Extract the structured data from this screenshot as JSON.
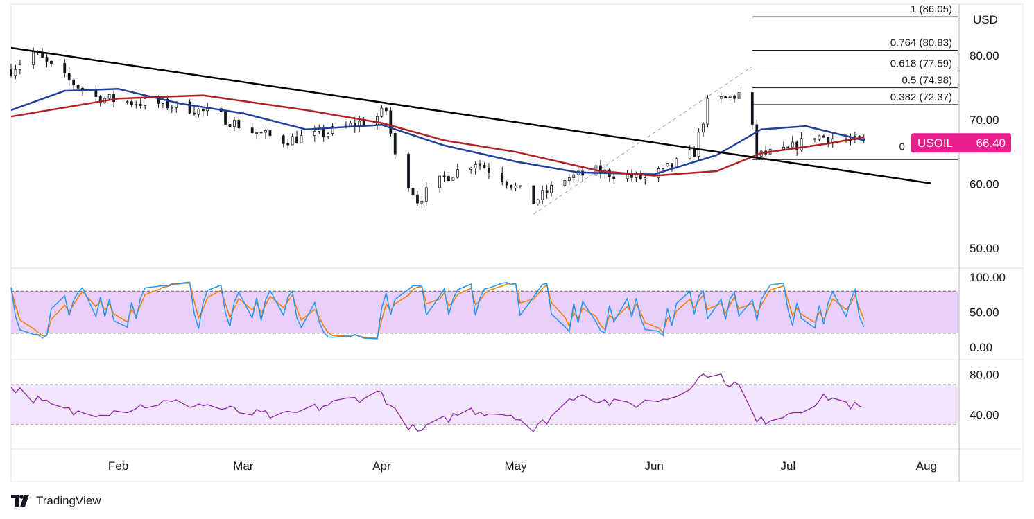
{
  "chart_data": {
    "type": "candlestick",
    "symbol": "USOIL",
    "last_price": "66.40",
    "currency": "USD",
    "price_axis": {
      "ylim": [
        47,
        88
      ],
      "ticks": [
        "80.00",
        "70.00",
        "60.00",
        "50.00"
      ],
      "tick_values": [
        80,
        70,
        60,
        50
      ]
    },
    "x_axis": {
      "months": [
        "Feb",
        "Mar",
        "Apr",
        "May",
        "Jun",
        "Jul",
        "Aug"
      ],
      "start": "2025-01-08",
      "end": "2025-08-08"
    },
    "price_path": [
      [
        "2025-01-08",
        77.8
      ],
      [
        "2025-01-13",
        80.5
      ],
      [
        "2025-01-20",
        76.5
      ],
      [
        "2025-01-27",
        73.5
      ],
      [
        "2025-02-03",
        72.8
      ],
      [
        "2025-02-10",
        72.5
      ],
      [
        "2025-02-17",
        71.8
      ],
      [
        "2025-02-24",
        70.5
      ],
      [
        "2025-03-03",
        68.2
      ],
      [
        "2025-03-10",
        66.8
      ],
      [
        "2025-03-17",
        67.5
      ],
      [
        "2025-03-24",
        68.8
      ],
      [
        "2025-03-31",
        70.5
      ],
      [
        "2025-04-02",
        71.5
      ],
      [
        "2025-04-04",
        64.2
      ],
      [
        "2025-04-09",
        57.5
      ],
      [
        "2025-04-15",
        61.0
      ],
      [
        "2025-04-22",
        63.5
      ],
      [
        "2025-04-29",
        60.5
      ],
      [
        "2025-05-05",
        57.2
      ],
      [
        "2025-05-12",
        60.8
      ],
      [
        "2025-05-19",
        62.0
      ],
      [
        "2025-05-26",
        61.2
      ],
      [
        "2025-05-30",
        60.8
      ],
      [
        "2025-06-05",
        62.8
      ],
      [
        "2025-06-10",
        65.0
      ],
      [
        "2025-06-13",
        72.5
      ],
      [
        "2025-06-18",
        73.5
      ],
      [
        "2025-06-20",
        74.0
      ],
      [
        "2025-06-23",
        68.5
      ],
      [
        "2025-06-24",
        64.5
      ],
      [
        "2025-06-30",
        65.0
      ],
      [
        "2025-07-07",
        67.5
      ],
      [
        "2025-07-14",
        66.8
      ],
      [
        "2025-07-18",
        66.4
      ]
    ],
    "moving_averages": [
      {
        "color": "#1e3f9b",
        "values": [
          [
            "2025-01-08",
            71.5
          ],
          [
            "2025-01-20",
            74.5
          ],
          [
            "2025-02-01",
            74.8
          ],
          [
            "2025-02-15",
            72.5
          ],
          [
            "2025-03-01",
            71.0
          ],
          [
            "2025-03-15",
            68.5
          ],
          [
            "2025-04-01",
            69.2
          ],
          [
            "2025-04-15",
            66.0
          ],
          [
            "2025-05-01",
            63.5
          ],
          [
            "2025-05-15",
            61.8
          ],
          [
            "2025-06-01",
            61.5
          ],
          [
            "2025-06-15",
            64.5
          ],
          [
            "2025-06-25",
            68.5
          ],
          [
            "2025-07-05",
            69.0
          ],
          [
            "2025-07-18",
            66.8
          ]
        ]
      },
      {
        "color": "#b22222",
        "values": [
          [
            "2025-01-08",
            70.5
          ],
          [
            "2025-02-01",
            73.3
          ],
          [
            "2025-02-20",
            73.8
          ],
          [
            "2025-03-15",
            71.5
          ],
          [
            "2025-04-01",
            69.5
          ],
          [
            "2025-04-15",
            66.8
          ],
          [
            "2025-05-01",
            65.0
          ],
          [
            "2025-05-20",
            62.0
          ],
          [
            "2025-06-01",
            61.3
          ],
          [
            "2025-06-15",
            62.0
          ],
          [
            "2025-06-25",
            64.8
          ],
          [
            "2025-07-10",
            66.3
          ],
          [
            "2025-07-18",
            67.3
          ]
        ]
      }
    ],
    "trendline": {
      "color": "#000000",
      "from": [
        "2025-01-08",
        81.2
      ],
      "to": [
        "2025-08-02",
        60.1
      ]
    },
    "fib_anchor": {
      "from": [
        "2025-05-05",
        55.3
      ],
      "to": [
        "2025-06-23",
        78.3
      ]
    },
    "fibonacci": [
      {
        "label": "1 (86.05)",
        "price": 86.05
      },
      {
        "label": "0.764 (80.83)",
        "price": 80.83
      },
      {
        "label": "0.618 (77.59)",
        "price": 77.59
      },
      {
        "label": "0.5 (74.98)",
        "price": 74.98
      },
      {
        "label": "0.382 (72.37)",
        "price": 72.37
      },
      {
        "label": "0",
        "price": 63.8
      }
    ],
    "stochastic": {
      "ticks": [
        "100.00",
        "50.00",
        "0.00"
      ],
      "tick_values": [
        100,
        50,
        0
      ],
      "band": [
        20,
        80
      ],
      "band_color": "#e8d0fb",
      "k_color": "#2196f3",
      "d_color": "#f57c00"
    },
    "rsi": {
      "ticks": [
        "80.00",
        "40.00"
      ],
      "tick_values": [
        80,
        40
      ],
      "band": [
        30,
        70
      ],
      "band_color": "#f3e5fb",
      "line_color": "#8e24aa",
      "path": [
        [
          "2025-01-08",
          68
        ],
        [
          "2025-01-15",
          52
        ],
        [
          "2025-01-22",
          42
        ],
        [
          "2025-02-01",
          44
        ],
        [
          "2025-02-10",
          52
        ],
        [
          "2025-02-20",
          50
        ],
        [
          "2025-03-01",
          42
        ],
        [
          "2025-03-10",
          38
        ],
        [
          "2025-03-20",
          50
        ],
        [
          "2025-04-01",
          62
        ],
        [
          "2025-04-04",
          42
        ],
        [
          "2025-04-09",
          22
        ],
        [
          "2025-04-20",
          45
        ],
        [
          "2025-05-01",
          40
        ],
        [
          "2025-05-05",
          24
        ],
        [
          "2025-05-15",
          62
        ],
        [
          "2025-05-25",
          48
        ],
        [
          "2025-06-05",
          58
        ],
        [
          "2025-06-13",
          82
        ],
        [
          "2025-06-20",
          68
        ],
        [
          "2025-06-24",
          32
        ],
        [
          "2025-07-05",
          48
        ],
        [
          "2025-07-10",
          58
        ],
        [
          "2025-07-18",
          45
        ]
      ]
    }
  },
  "brand": {
    "name": "TradingView"
  }
}
